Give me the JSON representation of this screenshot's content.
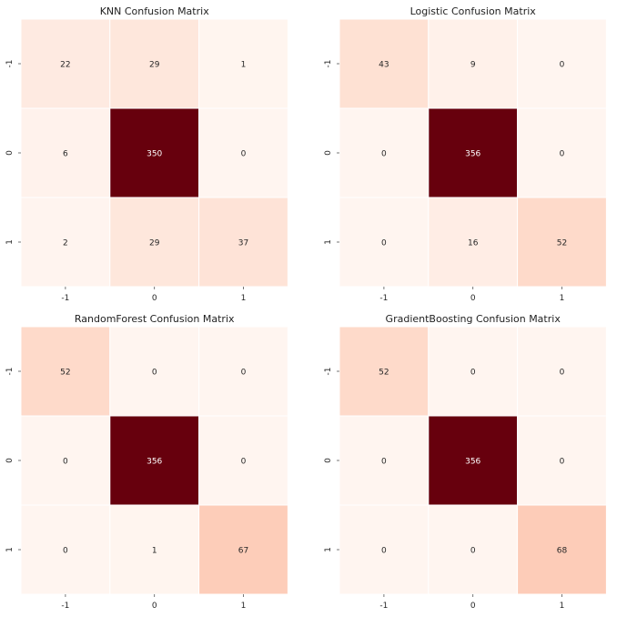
{
  "chart_data": [
    {
      "type": "heatmap",
      "title": "KNN Confusion Matrix",
      "xlabel": "",
      "ylabel": "",
      "x_categories": [
        "-1",
        "0",
        "1"
      ],
      "y_categories": [
        "-1",
        "0",
        "1"
      ],
      "values": [
        [
          22,
          29,
          1
        ],
        [
          6,
          350,
          0
        ],
        [
          2,
          29,
          37
        ]
      ],
      "colormap": "Reds",
      "vmax": 350,
      "colorbar": false,
      "grid": false
    },
    {
      "type": "heatmap",
      "title": "Logistic Confusion Matrix",
      "xlabel": "",
      "ylabel": "",
      "x_categories": [
        "-1",
        "0",
        "1"
      ],
      "y_categories": [
        "-1",
        "0",
        "1"
      ],
      "values": [
        [
          43,
          9,
          0
        ],
        [
          0,
          356,
          0
        ],
        [
          0,
          16,
          52
        ]
      ],
      "colormap": "Reds",
      "vmax": 356,
      "colorbar": false,
      "grid": false
    },
    {
      "type": "heatmap",
      "title": "RandomForest Confusion Matrix",
      "xlabel": "",
      "ylabel": "",
      "x_categories": [
        "-1",
        "0",
        "1"
      ],
      "y_categories": [
        "-1",
        "0",
        "1"
      ],
      "values": [
        [
          52,
          0,
          0
        ],
        [
          0,
          356,
          0
        ],
        [
          0,
          1,
          67
        ]
      ],
      "colormap": "Reds",
      "vmax": 356,
      "colorbar": false,
      "grid": false
    },
    {
      "type": "heatmap",
      "title": "GradientBoosting Confusion Matrix",
      "xlabel": "",
      "ylabel": "",
      "x_categories": [
        "-1",
        "0",
        "1"
      ],
      "y_categories": [
        "-1",
        "0",
        "1"
      ],
      "values": [
        [
          52,
          0,
          0
        ],
        [
          0,
          356,
          0
        ],
        [
          0,
          0,
          68
        ]
      ],
      "colormap": "Reds",
      "vmax": 356,
      "colorbar": false,
      "grid": false
    }
  ]
}
